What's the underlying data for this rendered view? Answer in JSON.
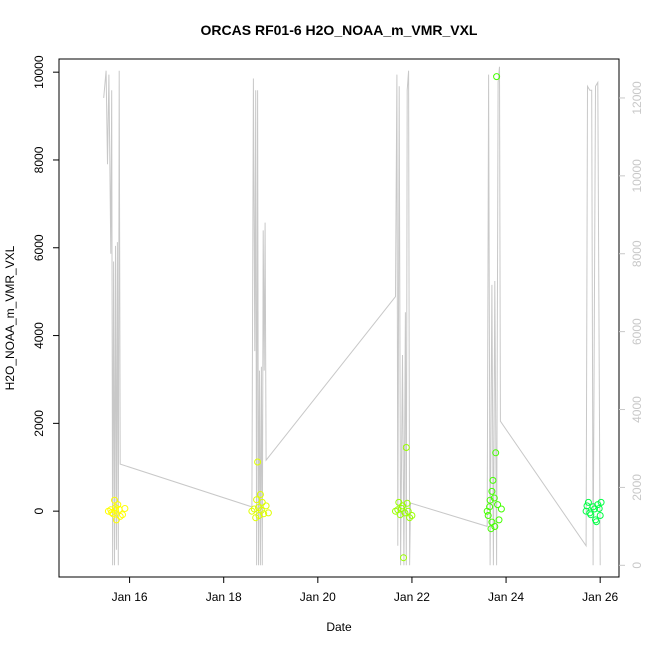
{
  "chart_data": {
    "type": "scatter",
    "title": "ORCAS RF01-6 H2O_NOAA_m_VMR_VXL",
    "xlabel": "Date",
    "ylabel": "H2O_NOAA_m_VMR_VXL",
    "x_ticks": [
      {
        "label": "Jan 16",
        "day": 16
      },
      {
        "label": "Jan 18",
        "day": 18
      },
      {
        "label": "Jan 20",
        "day": 20
      },
      {
        "label": "Jan 22",
        "day": 22
      },
      {
        "label": "Jan 24",
        "day": 24
      },
      {
        "label": "Jan 26",
        "day": 26
      }
    ],
    "xlim_day": [
      14.5,
      26.4
    ],
    "y_left": {
      "ticks": [
        0,
        2000,
        4000,
        6000,
        8000,
        10000
      ],
      "lim": [
        -1500,
        10300
      ]
    },
    "y_right": {
      "ticks": [
        0,
        2000,
        4000,
        6000,
        8000,
        10000,
        12000
      ],
      "lim": [
        -300,
        13000
      ],
      "color": "#c8c8c8"
    },
    "grid": false,
    "series": [
      {
        "style": "points",
        "axis": "left",
        "color": "#ffff00",
        "points": [
          [
            15.55,
            0
          ],
          [
            15.6,
            30
          ],
          [
            15.65,
            -60
          ],
          [
            15.7,
            80
          ],
          [
            15.75,
            150
          ],
          [
            15.8,
            -120
          ],
          [
            15.68,
            250
          ],
          [
            15.72,
            -200
          ],
          [
            15.62,
            -30
          ],
          [
            15.78,
            40
          ],
          [
            15.85,
            -80
          ],
          [
            15.7,
            10
          ],
          [
            15.9,
            60
          ]
        ]
      },
      {
        "style": "points",
        "axis": "left",
        "color": "#dfff00",
        "points": [
          [
            18.6,
            0
          ],
          [
            18.65,
            50
          ],
          [
            18.7,
            260
          ],
          [
            18.75,
            -100
          ],
          [
            18.8,
            20
          ],
          [
            18.85,
            -60
          ],
          [
            18.9,
            120
          ],
          [
            18.72,
            1120
          ],
          [
            18.78,
            380
          ],
          [
            18.68,
            -150
          ],
          [
            18.82,
            200
          ],
          [
            18.95,
            -40
          ],
          [
            18.74,
            80
          ]
        ]
      },
      {
        "style": "points",
        "axis": "left",
        "color": "#99ff00",
        "points": [
          [
            21.65,
            0
          ],
          [
            21.7,
            30
          ],
          [
            21.75,
            -80
          ],
          [
            21.8,
            120
          ],
          [
            21.85,
            -40
          ],
          [
            21.9,
            180
          ],
          [
            21.95,
            -150
          ],
          [
            21.88,
            1450
          ],
          [
            21.82,
            -1060
          ],
          [
            21.78,
            60
          ],
          [
            22.0,
            -100
          ],
          [
            21.72,
            200
          ],
          [
            21.92,
            0
          ]
        ]
      },
      {
        "style": "points",
        "axis": "left",
        "color": "#44ff00",
        "points": [
          [
            23.6,
            0
          ],
          [
            23.65,
            100
          ],
          [
            23.7,
            -250
          ],
          [
            23.75,
            300
          ],
          [
            23.8,
            9900
          ],
          [
            23.78,
            1330
          ],
          [
            23.72,
            700
          ],
          [
            23.68,
            -400
          ],
          [
            23.85,
            -200
          ],
          [
            23.7,
            450
          ],
          [
            23.9,
            50
          ],
          [
            23.62,
            -100
          ],
          [
            23.82,
            150
          ],
          [
            23.76,
            -350
          ],
          [
            23.66,
            250
          ]
        ]
      },
      {
        "style": "points",
        "axis": "left",
        "color": "#00ff44",
        "points": [
          [
            25.7,
            0
          ],
          [
            25.75,
            200
          ],
          [
            25.8,
            -80
          ],
          [
            25.85,
            100
          ],
          [
            25.9,
            -200
          ],
          [
            25.95,
            150
          ],
          [
            26.0,
            -100
          ],
          [
            25.88,
            50
          ],
          [
            25.78,
            -40
          ],
          [
            25.92,
            -240
          ],
          [
            26.02,
            200
          ],
          [
            25.72,
            120
          ],
          [
            25.98,
            60
          ]
        ]
      },
      {
        "style": "line",
        "axis": "right",
        "color": "#c8c8c8",
        "points": [
          [
            15.45,
            12000
          ],
          [
            15.5,
            12700
          ],
          [
            15.53,
            10300
          ],
          [
            15.56,
            12600
          ],
          [
            15.6,
            8000
          ],
          [
            15.62,
            12200
          ],
          [
            15.64,
            0
          ],
          [
            15.66,
            7800
          ],
          [
            15.68,
            0
          ],
          [
            15.7,
            8200
          ],
          [
            15.72,
            400
          ],
          [
            15.74,
            8300
          ],
          [
            15.76,
            0
          ],
          [
            15.78,
            12700
          ],
          [
            15.8,
            2600
          ],
          [
            18.6,
            1500
          ],
          [
            18.63,
            12500
          ],
          [
            18.66,
            5500
          ],
          [
            18.68,
            12200
          ],
          [
            18.7,
            0
          ],
          [
            18.72,
            12200
          ],
          [
            18.74,
            0
          ],
          [
            18.76,
            5000
          ],
          [
            18.78,
            0
          ],
          [
            18.8,
            5100
          ],
          [
            18.82,
            0
          ],
          [
            18.84,
            8600
          ],
          [
            18.86,
            5000
          ],
          [
            18.88,
            8800
          ],
          [
            18.9,
            2700
          ],
          [
            21.65,
            6900
          ],
          [
            21.68,
            12600
          ],
          [
            21.7,
            500
          ],
          [
            21.73,
            12300
          ],
          [
            21.76,
            0
          ],
          [
            21.8,
            5400
          ],
          [
            21.83,
            0
          ],
          [
            21.86,
            6500
          ],
          [
            21.88,
            0
          ],
          [
            21.9,
            12200
          ],
          [
            21.93,
            12700
          ],
          [
            21.95,
            0
          ],
          [
            21.97,
            1600
          ],
          [
            23.6,
            1000
          ],
          [
            23.63,
            12600
          ],
          [
            23.66,
            0
          ],
          [
            23.7,
            7200
          ],
          [
            23.73,
            0
          ],
          [
            23.76,
            7300
          ],
          [
            23.8,
            0
          ],
          [
            23.83,
            12400
          ],
          [
            23.86,
            12800
          ],
          [
            23.88,
            3700
          ],
          [
            25.7,
            500
          ],
          [
            25.73,
            12300
          ],
          [
            25.78,
            12200
          ],
          [
            25.82,
            12200
          ],
          [
            25.85,
            0
          ],
          [
            25.9,
            12300
          ],
          [
            25.95,
            12400
          ],
          [
            26.0,
            0
          ]
        ]
      }
    ]
  }
}
